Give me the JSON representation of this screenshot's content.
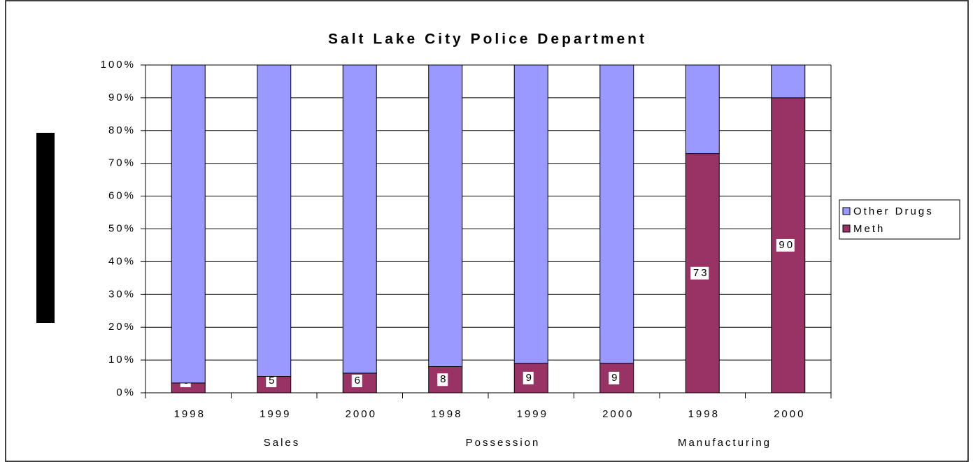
{
  "chart_data": {
    "type": "stacked_bar_percent",
    "title": "Salt Lake City Police Department",
    "categories": [
      "1998",
      "1999",
      "2000",
      "1998",
      "1999",
      "2000",
      "1998",
      "2000"
    ],
    "groups": [
      "Sales",
      "Possession",
      "Manufacturing"
    ],
    "series": [
      {
        "name": "Other Drugs",
        "color": "#9999ff",
        "values": [
          97,
          95,
          94,
          92,
          91,
          91,
          27,
          10
        ]
      },
      {
        "name": "Meth",
        "color": "#993366",
        "values": [
          3,
          5,
          6,
          8,
          9,
          9,
          73,
          90
        ]
      }
    ],
    "ylim": [
      0,
      100
    ],
    "yticks": [
      {
        "value": 0,
        "label": "0%"
      },
      {
        "value": 10,
        "label": "10%"
      },
      {
        "value": 20,
        "label": "20%"
      },
      {
        "value": 30,
        "label": "30%"
      },
      {
        "value": 40,
        "label": "40%"
      },
      {
        "value": 50,
        "label": "50%"
      },
      {
        "value": 60,
        "label": "60%"
      },
      {
        "value": 70,
        "label": "70%"
      },
      {
        "value": 80,
        "label": "80%"
      },
      {
        "value": 90,
        "label": "90%"
      },
      {
        "value": 100,
        "label": "100%"
      }
    ],
    "grid": true,
    "legend": "right"
  }
}
